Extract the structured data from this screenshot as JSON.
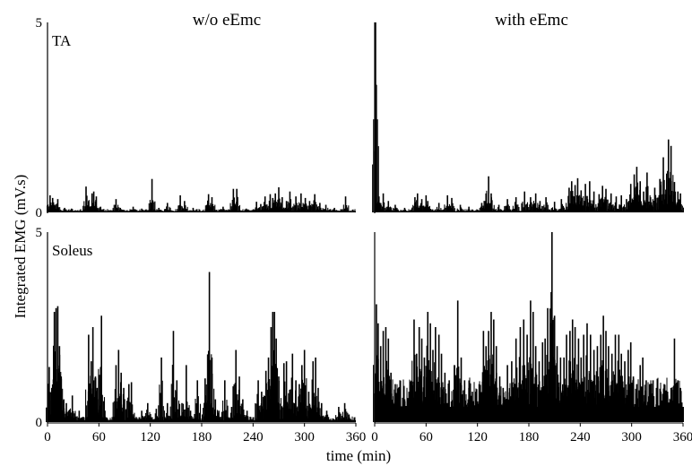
{
  "figure": {
    "col_titles": [
      "w/o eEmc",
      "with eEmc"
    ],
    "ylabel": "Integrated EMG (mV.s)",
    "xlabel": "time (min)"
  },
  "chart_data": [
    {
      "type": "bar",
      "column": "w/o eEmc",
      "row_label": "TA",
      "xlim": [
        0,
        360
      ],
      "ylim": [
        0,
        5
      ],
      "xticks": [
        0,
        60,
        120,
        180,
        240,
        300,
        360
      ],
      "yticks": [
        0,
        5
      ],
      "baseline": 0.03,
      "bursts": [
        [
          3,
          0.45
        ],
        [
          6,
          0.38
        ],
        [
          8,
          0.2
        ],
        [
          12,
          0.35
        ],
        [
          20,
          0.12
        ],
        [
          28,
          0.1
        ],
        [
          45,
          0.68
        ],
        [
          48,
          0.3
        ],
        [
          52,
          0.5
        ],
        [
          54,
          0.55
        ],
        [
          57,
          0.42
        ],
        [
          62,
          0.15
        ],
        [
          80,
          0.35
        ],
        [
          85,
          0.12
        ],
        [
          100,
          0.15
        ],
        [
          110,
          0.1
        ],
        [
          122,
          0.88
        ],
        [
          130,
          0.12
        ],
        [
          140,
          0.25
        ],
        [
          155,
          0.45
        ],
        [
          160,
          0.3
        ],
        [
          170,
          0.12
        ],
        [
          188,
          0.48
        ],
        [
          192,
          0.4
        ],
        [
          205,
          0.15
        ],
        [
          217,
          0.62
        ],
        [
          221,
          0.62
        ],
        [
          232,
          0.1
        ],
        [
          244,
          0.28
        ],
        [
          249,
          0.22
        ],
        [
          254,
          0.42
        ],
        [
          260,
          0.48
        ],
        [
          263,
          0.38
        ],
        [
          266,
          0.5
        ],
        [
          270,
          0.66
        ],
        [
          274,
          0.4
        ],
        [
          279,
          0.3
        ],
        [
          283,
          0.55
        ],
        [
          290,
          0.42
        ],
        [
          296,
          0.5
        ],
        [
          301,
          0.38
        ],
        [
          306,
          0.3
        ],
        [
          312,
          0.48
        ],
        [
          318,
          0.25
        ],
        [
          325,
          0.2
        ],
        [
          335,
          0.12
        ],
        [
          348,
          0.42
        ]
      ]
    },
    {
      "type": "bar",
      "column": "with eEmc",
      "row_label": "",
      "xlim": [
        0,
        360
      ],
      "ylim": [
        0,
        5
      ],
      "xticks": [
        0,
        60,
        120,
        180,
        240,
        300,
        360
      ],
      "yticks": [
        0,
        5
      ],
      "baseline": 0.03,
      "bursts": [
        [
          1,
          5.0
        ],
        [
          5,
          0.42
        ],
        [
          10,
          0.5
        ],
        [
          16,
          0.3
        ],
        [
          24,
          0.2
        ],
        [
          35,
          0.12
        ],
        [
          47,
          0.4
        ],
        [
          50,
          0.5
        ],
        [
          55,
          0.35
        ],
        [
          60,
          0.45
        ],
        [
          62,
          0.3
        ],
        [
          75,
          0.25
        ],
        [
          85,
          0.45
        ],
        [
          90,
          0.38
        ],
        [
          100,
          0.2
        ],
        [
          110,
          0.15
        ],
        [
          125,
          0.25
        ],
        [
          130,
          0.5
        ],
        [
          133,
          0.95
        ],
        [
          136,
          0.5
        ],
        [
          145,
          0.2
        ],
        [
          155,
          0.35
        ],
        [
          165,
          0.4
        ],
        [
          175,
          0.55
        ],
        [
          182,
          0.4
        ],
        [
          188,
          0.5
        ],
        [
          193,
          0.3
        ],
        [
          200,
          0.4
        ],
        [
          210,
          0.28
        ],
        [
          218,
          0.35
        ],
        [
          227,
          0.65
        ],
        [
          230,
          0.82
        ],
        [
          234,
          0.72
        ],
        [
          237,
          0.9
        ],
        [
          241,
          0.58
        ],
        [
          246,
          0.75
        ],
        [
          251,
          0.82
        ],
        [
          256,
          0.55
        ],
        [
          262,
          0.48
        ],
        [
          266,
          0.7
        ],
        [
          270,
          0.62
        ],
        [
          276,
          0.5
        ],
        [
          282,
          0.42
        ],
        [
          288,
          0.45
        ],
        [
          294,
          0.35
        ],
        [
          299,
          0.75
        ],
        [
          303,
          1.0
        ],
        [
          306,
          1.2
        ],
        [
          310,
          0.82
        ],
        [
          314,
          0.55
        ],
        [
          318,
          1.05
        ],
        [
          322,
          0.4
        ],
        [
          327,
          0.65
        ],
        [
          333,
          0.88
        ],
        [
          337,
          1.45
        ],
        [
          340,
          0.6
        ],
        [
          343,
          1.92
        ],
        [
          346,
          1.75
        ],
        [
          350,
          0.8
        ],
        [
          354,
          0.55
        ],
        [
          357,
          0.5
        ]
      ]
    },
    {
      "type": "bar",
      "column": "w/o eEmc",
      "row_label": "Soleus",
      "xlim": [
        0,
        360
      ],
      "ylim": [
        0,
        5
      ],
      "xticks": [
        0,
        60,
        120,
        180,
        240,
        300,
        360
      ],
      "yticks": [
        0,
        5
      ],
      "baseline": 0.05,
      "bursts": [
        [
          2,
          1.45
        ],
        [
          5,
          0.9
        ],
        [
          8,
          2.9
        ],
        [
          10,
          3.0
        ],
        [
          12,
          3.05
        ],
        [
          14,
          2.0
        ],
        [
          16,
          1.2
        ],
        [
          19,
          0.6
        ],
        [
          22,
          0.5
        ],
        [
          25,
          0.3
        ],
        [
          29,
          0.7
        ],
        [
          37,
          0.3
        ],
        [
          48,
          2.3
        ],
        [
          51,
          1.6
        ],
        [
          53,
          2.5
        ],
        [
          56,
          1.2
        ],
        [
          58,
          0.9
        ],
        [
          63,
          2.8
        ],
        [
          67,
          0.3
        ],
        [
          80,
          1.5
        ],
        [
          83,
          1.9
        ],
        [
          86,
          1.3
        ],
        [
          89,
          0.9
        ],
        [
          95,
          1.0
        ],
        [
          98,
          1.05
        ],
        [
          110,
          0.3
        ],
        [
          117,
          0.5
        ],
        [
          127,
          0.35
        ],
        [
          133,
          1.7
        ],
        [
          140,
          0.5
        ],
        [
          147,
          2.4
        ],
        [
          151,
          1.1
        ],
        [
          157,
          0.5
        ],
        [
          162,
          1.5
        ],
        [
          167,
          0.3
        ],
        [
          175,
          1.1
        ],
        [
          184,
          1.15
        ],
        [
          189,
          3.95
        ],
        [
          192,
          1.7
        ],
        [
          196,
          0.6
        ],
        [
          200,
          0.3
        ],
        [
          207,
          1.1
        ],
        [
          215,
          0.4
        ],
        [
          220,
          1.9
        ],
        [
          224,
          1.2
        ],
        [
          228,
          0.6
        ],
        [
          233,
          0.3
        ],
        [
          246,
          1.1
        ],
        [
          250,
          0.8
        ],
        [
          255,
          1.35
        ],
        [
          258,
          1.7
        ],
        [
          261,
          2.5
        ],
        [
          263,
          2.9
        ],
        [
          265,
          2.9
        ],
        [
          267,
          2.2
        ],
        [
          270,
          1.2
        ],
        [
          276,
          1.55
        ],
        [
          279,
          1.6
        ],
        [
          283,
          0.8
        ],
        [
          286,
          1.8
        ],
        [
          290,
          1.1
        ],
        [
          294,
          1.0
        ],
        [
          297,
          1.5
        ],
        [
          300,
          1.9
        ],
        [
          305,
          0.8
        ],
        [
          310,
          1.6
        ],
        [
          313,
          1.7
        ],
        [
          316,
          0.9
        ],
        [
          320,
          0.5
        ],
        [
          326,
          0.3
        ],
        [
          340,
          0.4
        ],
        [
          347,
          0.5
        ],
        [
          352,
          0.2
        ]
      ]
    },
    {
      "type": "bar",
      "column": "with eEmc",
      "row_label": "",
      "xlim": [
        0,
        360
      ],
      "ylim": [
        0,
        5
      ],
      "xticks": [
        0,
        60,
        120,
        180,
        240,
        300,
        360
      ],
      "yticks": [
        0,
        5
      ],
      "baseline": 0.4,
      "bursts": [
        [
          2,
          3.1
        ],
        [
          4,
          2.6
        ],
        [
          7,
          2.0
        ],
        [
          10,
          2.4
        ],
        [
          13,
          2.5
        ],
        [
          16,
          2.2
        ],
        [
          19,
          1.3
        ],
        [
          24,
          1.0
        ],
        [
          28,
          0.9
        ],
        [
          35,
          0.6
        ],
        [
          46,
          2.7
        ],
        [
          49,
          1.8
        ],
        [
          52,
          2.5
        ],
        [
          55,
          2.2
        ],
        [
          58,
          1.7
        ],
        [
          62,
          2.9
        ],
        [
          65,
          2.6
        ],
        [
          68,
          1.9
        ],
        [
          71,
          2.5
        ],
        [
          75,
          2.3
        ],
        [
          78,
          1.8
        ],
        [
          82,
          1.3
        ],
        [
          87,
          1.1
        ],
        [
          93,
          1.5
        ],
        [
          97,
          3.2
        ],
        [
          101,
          1.7
        ],
        [
          105,
          1.1
        ],
        [
          110,
          0.9
        ],
        [
          114,
          0.8
        ],
        [
          118,
          0.8
        ],
        [
          122,
          1.0
        ],
        [
          127,
          2.4
        ],
        [
          130,
          2.0
        ],
        [
          133,
          2.4
        ],
        [
          136,
          2.9
        ],
        [
          139,
          2.7
        ],
        [
          142,
          2.0
        ],
        [
          146,
          1.2
        ],
        [
          150,
          0.9
        ],
        [
          155,
          1.5
        ],
        [
          160,
          1.6
        ],
        [
          165,
          2.2
        ],
        [
          170,
          2.5
        ],
        [
          174,
          2.7
        ],
        [
          178,
          2.3
        ],
        [
          182,
          3.2
        ],
        [
          185,
          2.9
        ],
        [
          188,
          2.0
        ],
        [
          192,
          1.6
        ],
        [
          196,
          2.1
        ],
        [
          199,
          2.2
        ],
        [
          202,
          3.0
        ],
        [
          205,
          2.6
        ],
        [
          207,
          5.0
        ],
        [
          210,
          2.8
        ],
        [
          213,
          2.0
        ],
        [
          217,
          1.7
        ],
        [
          221,
          1.7
        ],
        [
          224,
          2.3
        ],
        [
          228,
          2.4
        ],
        [
          231,
          2.7
        ],
        [
          234,
          2.5
        ],
        [
          238,
          2.2
        ],
        [
          241,
          1.7
        ],
        [
          244,
          2.3
        ],
        [
          248,
          2.6
        ],
        [
          252,
          2.3
        ],
        [
          256,
          1.9
        ],
        [
          260,
          2.0
        ],
        [
          264,
          2.3
        ],
        [
          267,
          2.8
        ],
        [
          270,
          2.4
        ],
        [
          273,
          2.0
        ],
        [
          277,
          1.8
        ],
        [
          281,
          2.3
        ],
        [
          285,
          2.3
        ],
        [
          288,
          1.8
        ],
        [
          292,
          1.6
        ],
        [
          296,
          1.9
        ],
        [
          299,
          2.1
        ],
        [
          302,
          1.2
        ],
        [
          306,
          1.0
        ],
        [
          310,
          1.5
        ],
        [
          313,
          1.7
        ],
        [
          317,
          1.1
        ],
        [
          321,
          1.0
        ],
        [
          325,
          1.1
        ],
        [
          329,
          0.9
        ],
        [
          334,
          0.8
        ],
        [
          338,
          1.0
        ],
        [
          342,
          0.7
        ],
        [
          346,
          0.9
        ],
        [
          350,
          2.2
        ],
        [
          354,
          1.1
        ],
        [
          357,
          0.9
        ]
      ]
    }
  ]
}
